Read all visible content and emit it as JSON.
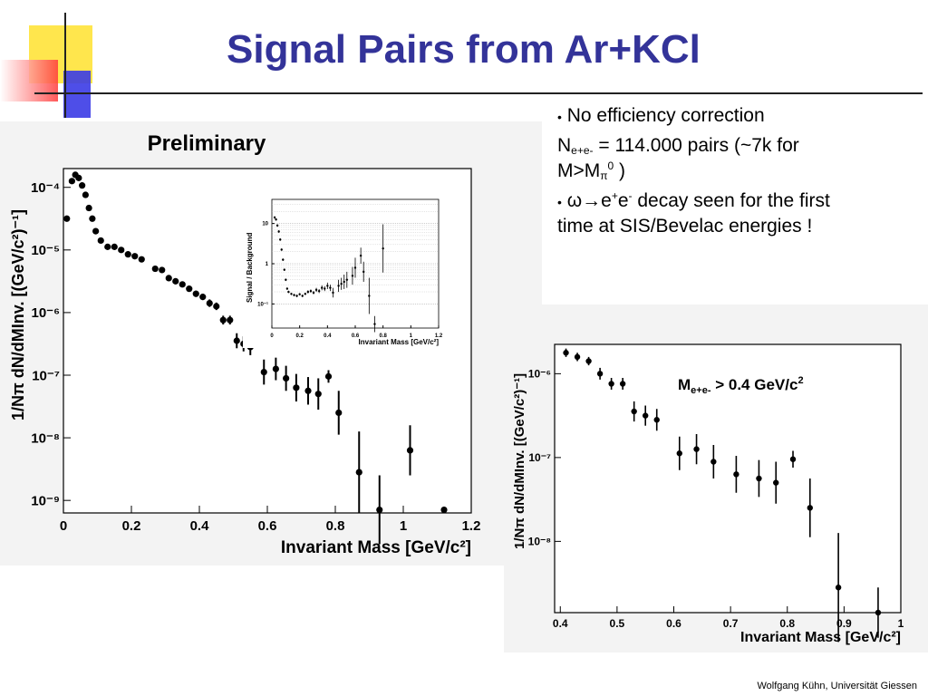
{
  "slide": {
    "title": "Signal Pairs from Ar+KCl",
    "footer": "Wolfgang Kühn, Universität Giessen",
    "bullet1": "No efficiency correction",
    "stat_sym": "N",
    "stat_sub": "e+e-",
    "stat_text": " = 114.000 pairs (~7k for",
    "stat_text2": "M>M",
    "stat_pi": "π",
    "stat_zero": "0",
    "stat_close": " )",
    "decay_omega": "ω→e",
    "decay_plus": "+",
    "decay_e": "e",
    "decay_minus": "-",
    "decay_text": " decay seen for the first",
    "decay_text2": "time at SIS/Bevelac energies !"
  },
  "colors": {
    "title": "#333399",
    "deco_yellow": "#ffe64d",
    "deco_red": "#ff3b3b",
    "deco_blue": "#3b3be6"
  },
  "chart_data": [
    {
      "type": "scatter",
      "annotation": "Preliminary",
      "xlabel": "Invariant Mass  [GeV/c²]",
      "ylabel": "1/Nπ dN/dMInv. [(GeV/c²)⁻¹]",
      "xlim": [
        0,
        1.2
      ],
      "ylim_log10": [
        -9.2,
        -3.7
      ],
      "x_ticks": [
        "0",
        "0.2",
        "0.4",
        "0.6",
        "0.8",
        "1",
        "1.2"
      ],
      "y_ticks": [
        "10⁻⁹",
        "10⁻⁸",
        "10⁻⁷",
        "10⁻⁶",
        "10⁻⁵",
        "10⁻⁴"
      ],
      "points": [
        {
          "x": 0.01,
          "log10y": -4.5,
          "err": 0.03
        },
        {
          "x": 0.025,
          "log10y": -3.9,
          "err": 0.03
        },
        {
          "x": 0.035,
          "log10y": -3.8,
          "err": 0.03
        },
        {
          "x": 0.045,
          "log10y": -3.85,
          "err": 0.03
        },
        {
          "x": 0.055,
          "log10y": -3.97,
          "err": 0.03
        },
        {
          "x": 0.065,
          "log10y": -4.12,
          "err": 0.03
        },
        {
          "x": 0.075,
          "log10y": -4.33,
          "err": 0.03
        },
        {
          "x": 0.085,
          "log10y": -4.5,
          "err": 0.03
        },
        {
          "x": 0.095,
          "log10y": -4.7,
          "err": 0.03
        },
        {
          "x": 0.11,
          "log10y": -4.85,
          "err": 0.03
        },
        {
          "x": 0.13,
          "log10y": -4.95,
          "err": 0.03
        },
        {
          "x": 0.15,
          "log10y": -4.95,
          "err": 0.03
        },
        {
          "x": 0.17,
          "log10y": -5.0,
          "err": 0.03
        },
        {
          "x": 0.19,
          "log10y": -5.07,
          "err": 0.03
        },
        {
          "x": 0.21,
          "log10y": -5.1,
          "err": 0.03
        },
        {
          "x": 0.23,
          "log10y": -5.15,
          "err": 0.03
        },
        {
          "x": 0.27,
          "log10y": -5.3,
          "err": 0.04
        },
        {
          "x": 0.29,
          "log10y": -5.32,
          "err": 0.04
        },
        {
          "x": 0.31,
          "log10y": -5.45,
          "err": 0.04
        },
        {
          "x": 0.33,
          "log10y": -5.5,
          "err": 0.04
        },
        {
          "x": 0.35,
          "log10y": -5.55,
          "err": 0.04
        },
        {
          "x": 0.37,
          "log10y": -5.62,
          "err": 0.04
        },
        {
          "x": 0.39,
          "log10y": -5.7,
          "err": 0.05
        },
        {
          "x": 0.41,
          "log10y": -5.75,
          "err": 0.05
        },
        {
          "x": 0.43,
          "log10y": -5.85,
          "err": 0.06
        },
        {
          "x": 0.45,
          "log10y": -5.9,
          "err": 0.06
        },
        {
          "x": 0.47,
          "log10y": -6.12,
          "err": 0.07
        },
        {
          "x": 0.49,
          "log10y": -6.12,
          "err": 0.07
        },
        {
          "x": 0.51,
          "log10y": -6.45,
          "err": 0.12
        },
        {
          "x": 0.53,
          "log10y": -6.5,
          "err": 0.12
        },
        {
          "x": 0.55,
          "log10y": -6.55,
          "err": 0.13
        },
        {
          "x": 0.59,
          "log10y": -6.95,
          "err": 0.2
        },
        {
          "x": 0.625,
          "log10y": -6.9,
          "err": 0.18
        },
        {
          "x": 0.655,
          "log10y": -7.05,
          "err": 0.2
        },
        {
          "x": 0.685,
          "log10y": -7.2,
          "err": 0.22
        },
        {
          "x": 0.72,
          "log10y": -7.25,
          "err": 0.22
        },
        {
          "x": 0.75,
          "log10y": -7.3,
          "err": 0.25
        },
        {
          "x": 0.78,
          "log10y": -7.02,
          "err": 0.1
        },
        {
          "x": 0.81,
          "log10y": -7.6,
          "err": 0.35
        },
        {
          "x": 0.87,
          "log10y": -8.55,
          "err": 0.65
        },
        {
          "x": 0.93,
          "log10y": -9.15,
          "err": 0.55
        },
        {
          "x": 1.02,
          "log10y": -8.2,
          "err": 0.4
        },
        {
          "x": 1.12,
          "log10y": -9.15,
          "err": 0.05
        }
      ]
    },
    {
      "type": "scatter",
      "xlabel": "Invariant Mass  [GeV/c²]",
      "ylabel": "Signal / Background",
      "xlim": [
        0,
        1.2
      ],
      "ylim_log10": [
        -1.6,
        1.6
      ],
      "x_ticks": [
        "0",
        "0.2",
        "0.4",
        "0.6",
        "0.8",
        "1",
        "1.2"
      ],
      "y_ticks": [
        "10⁻¹",
        "1",
        "10"
      ],
      "points": [
        {
          "x": 0.02,
          "log10y": 1.15,
          "err": 0.03
        },
        {
          "x": 0.03,
          "log10y": 1.1,
          "err": 0.03
        },
        {
          "x": 0.04,
          "log10y": 0.95,
          "err": 0.03
        },
        {
          "x": 0.05,
          "log10y": 0.8,
          "err": 0.03
        },
        {
          "x": 0.06,
          "log10y": 0.6,
          "err": 0.03
        },
        {
          "x": 0.07,
          "log10y": 0.35,
          "err": 0.03
        },
        {
          "x": 0.08,
          "log10y": 0.1,
          "err": 0.03
        },
        {
          "x": 0.09,
          "log10y": -0.15,
          "err": 0.03
        },
        {
          "x": 0.1,
          "log10y": -0.4,
          "err": 0.03
        },
        {
          "x": 0.11,
          "log10y": -0.62,
          "err": 0.03
        },
        {
          "x": 0.12,
          "log10y": -0.7,
          "err": 0.03
        },
        {
          "x": 0.14,
          "log10y": -0.75,
          "err": 0.03
        },
        {
          "x": 0.16,
          "log10y": -0.78,
          "err": 0.03
        },
        {
          "x": 0.18,
          "log10y": -0.8,
          "err": 0.03
        },
        {
          "x": 0.2,
          "log10y": -0.76,
          "err": 0.03
        },
        {
          "x": 0.22,
          "log10y": -0.8,
          "err": 0.03
        },
        {
          "x": 0.24,
          "log10y": -0.75,
          "err": 0.03
        },
        {
          "x": 0.26,
          "log10y": -0.7,
          "err": 0.04
        },
        {
          "x": 0.28,
          "log10y": -0.68,
          "err": 0.04
        },
        {
          "x": 0.3,
          "log10y": -0.72,
          "err": 0.04
        },
        {
          "x": 0.32,
          "log10y": -0.65,
          "err": 0.05
        },
        {
          "x": 0.34,
          "log10y": -0.68,
          "err": 0.05
        },
        {
          "x": 0.36,
          "log10y": -0.6,
          "err": 0.06
        },
        {
          "x": 0.38,
          "log10y": -0.62,
          "err": 0.06
        },
        {
          "x": 0.4,
          "log10y": -0.55,
          "err": 0.08
        },
        {
          "x": 0.42,
          "log10y": -0.6,
          "err": 0.08
        },
        {
          "x": 0.44,
          "log10y": -0.72,
          "err": 0.12
        },
        {
          "x": 0.48,
          "log10y": -0.55,
          "err": 0.15
        },
        {
          "x": 0.5,
          "log10y": -0.5,
          "err": 0.15
        },
        {
          "x": 0.52,
          "log10y": -0.45,
          "err": 0.18
        },
        {
          "x": 0.54,
          "log10y": -0.4,
          "err": 0.2
        },
        {
          "x": 0.58,
          "log10y": -0.3,
          "err": 0.22
        },
        {
          "x": 0.6,
          "log10y": -0.1,
          "err": 0.25
        },
        {
          "x": 0.64,
          "log10y": 0.2,
          "err": 0.2
        },
        {
          "x": 0.66,
          "log10y": -0.2,
          "err": 0.25
        },
        {
          "x": 0.7,
          "log10y": -0.8,
          "err": 0.45
        },
        {
          "x": 0.74,
          "log10y": -1.5,
          "err": 0.2
        },
        {
          "x": 0.8,
          "log10y": 0.38,
          "err": 0.6
        }
      ]
    },
    {
      "type": "scatter",
      "annotation_main": "M",
      "annotation_sub": "e+e-",
      "annotation_tail": " > 0.4 GeV/c",
      "annotation_sup": "2",
      "xlabel": "Invariant Mass  [GeV/c²]",
      "ylabel": "1/Nπ dN/dMInv. [(GeV/c²)⁻¹]",
      "xlim": [
        0.39,
        1.0
      ],
      "ylim_log10": [
        -8.85,
        -5.65
      ],
      "x_ticks": [
        "0.4",
        "0.5",
        "0.6",
        "0.7",
        "0.8",
        "0.9",
        "1"
      ],
      "y_ticks": [
        "10⁻⁸",
        "10⁻⁷",
        "10⁻⁶"
      ],
      "points": [
        {
          "x": 0.41,
          "log10y": -5.75,
          "err": 0.05
        },
        {
          "x": 0.43,
          "log10y": -5.8,
          "err": 0.05
        },
        {
          "x": 0.45,
          "log10y": -5.85,
          "err": 0.05
        },
        {
          "x": 0.47,
          "log10y": -6.0,
          "err": 0.07
        },
        {
          "x": 0.49,
          "log10y": -6.12,
          "err": 0.07
        },
        {
          "x": 0.51,
          "log10y": -6.12,
          "err": 0.07
        },
        {
          "x": 0.53,
          "log10y": -6.45,
          "err": 0.12
        },
        {
          "x": 0.55,
          "log10y": -6.5,
          "err": 0.12
        },
        {
          "x": 0.57,
          "log10y": -6.55,
          "err": 0.13
        },
        {
          "x": 0.61,
          "log10y": -6.95,
          "err": 0.2
        },
        {
          "x": 0.64,
          "log10y": -6.9,
          "err": 0.18
        },
        {
          "x": 0.67,
          "log10y": -7.05,
          "err": 0.2
        },
        {
          "x": 0.71,
          "log10y": -7.2,
          "err": 0.22
        },
        {
          "x": 0.75,
          "log10y": -7.25,
          "err": 0.22
        },
        {
          "x": 0.78,
          "log10y": -7.3,
          "err": 0.25
        },
        {
          "x": 0.81,
          "log10y": -7.02,
          "err": 0.1
        },
        {
          "x": 0.84,
          "log10y": -7.6,
          "err": 0.35
        },
        {
          "x": 0.89,
          "log10y": -8.55,
          "err": 0.65
        },
        {
          "x": 0.96,
          "log10y": -8.85,
          "err": 0.3
        }
      ]
    }
  ]
}
